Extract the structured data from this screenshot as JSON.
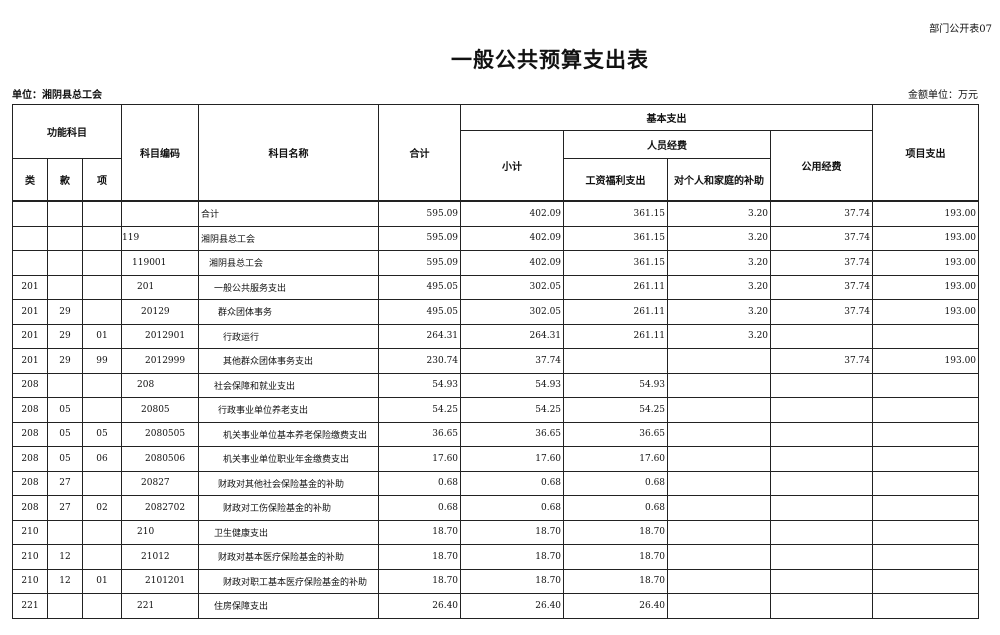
{
  "form_no": "部门公开表07",
  "title": "一般公共预算支出表",
  "unit": "单位：湘阴县总工会",
  "money_unit": "金额单位：万元",
  "headers": {
    "func_subject": "功能科目",
    "lei": "类",
    "kuan": "款",
    "xiang": "项",
    "code": "科目编码",
    "name": "科目名称",
    "total": "合计",
    "basic": "基本支出",
    "subtotal": "小计",
    "personnel": "人员经费",
    "wages": "工资福利支出",
    "subsidy": "对个人和家庭的补助",
    "public": "公用经费",
    "project": "项目支出"
  },
  "rows": [
    {
      "lei": "",
      "kuan": "",
      "xiang": "",
      "code": "",
      "name": "合计",
      "total": "595.09",
      "subtotal": "402.09",
      "wages": "361.15",
      "subsidy": "3.20",
      "public": "37.74",
      "project": "193.00"
    },
    {
      "lei": "",
      "kuan": "",
      "xiang": "",
      "code": "119",
      "name": "湘阴县总工会",
      "total": "595.09",
      "subtotal": "402.09",
      "wages": "361.15",
      "subsidy": "3.20",
      "public": "37.74",
      "project": "193.00"
    },
    {
      "lei": "",
      "kuan": "",
      "xiang": "",
      "code": "119001",
      "name": "湘阴县总工会",
      "total": "595.09",
      "subtotal": "402.09",
      "wages": "361.15",
      "subsidy": "3.20",
      "public": "37.74",
      "project": "193.00"
    },
    {
      "lei": "201",
      "kuan": "",
      "xiang": "",
      "code": "201",
      "name": "一般公共服务支出",
      "total": "495.05",
      "subtotal": "302.05",
      "wages": "261.11",
      "subsidy": "3.20",
      "public": "37.74",
      "project": "193.00"
    },
    {
      "lei": "201",
      "kuan": "29",
      "xiang": "",
      "code": "20129",
      "name": "群众团体事务",
      "total": "495.05",
      "subtotal": "302.05",
      "wages": "261.11",
      "subsidy": "3.20",
      "public": "37.74",
      "project": "193.00"
    },
    {
      "lei": "201",
      "kuan": "29",
      "xiang": "01",
      "code": "2012901",
      "name": "行政运行",
      "total": "264.31",
      "subtotal": "264.31",
      "wages": "261.11",
      "subsidy": "3.20",
      "public": "",
      "project": ""
    },
    {
      "lei": "201",
      "kuan": "29",
      "xiang": "99",
      "code": "2012999",
      "name": "其他群众团体事务支出",
      "total": "230.74",
      "subtotal": "37.74",
      "wages": "",
      "subsidy": "",
      "public": "37.74",
      "project": "193.00"
    },
    {
      "lei": "208",
      "kuan": "",
      "xiang": "",
      "code": "208",
      "name": "社会保障和就业支出",
      "total": "54.93",
      "subtotal": "54.93",
      "wages": "54.93",
      "subsidy": "",
      "public": "",
      "project": ""
    },
    {
      "lei": "208",
      "kuan": "05",
      "xiang": "",
      "code": "20805",
      "name": "行政事业单位养老支出",
      "total": "54.25",
      "subtotal": "54.25",
      "wages": "54.25",
      "subsidy": "",
      "public": "",
      "project": ""
    },
    {
      "lei": "208",
      "kuan": "05",
      "xiang": "05",
      "code": "2080505",
      "name": "机关事业单位基本养老保险缴费支出",
      "total": "36.65",
      "subtotal": "36.65",
      "wages": "36.65",
      "subsidy": "",
      "public": "",
      "project": ""
    },
    {
      "lei": "208",
      "kuan": "05",
      "xiang": "06",
      "code": "2080506",
      "name": "机关事业单位职业年金缴费支出",
      "total": "17.60",
      "subtotal": "17.60",
      "wages": "17.60",
      "subsidy": "",
      "public": "",
      "project": ""
    },
    {
      "lei": "208",
      "kuan": "27",
      "xiang": "",
      "code": "20827",
      "name": "财政对其他社会保险基金的补助",
      "total": "0.68",
      "subtotal": "0.68",
      "wages": "0.68",
      "subsidy": "",
      "public": "",
      "project": ""
    },
    {
      "lei": "208",
      "kuan": "27",
      "xiang": "02",
      "code": "2082702",
      "name": "财政对工伤保险基金的补助",
      "total": "0.68",
      "subtotal": "0.68",
      "wages": "0.68",
      "subsidy": "",
      "public": "",
      "project": ""
    },
    {
      "lei": "210",
      "kuan": "",
      "xiang": "",
      "code": "210",
      "name": "卫生健康支出",
      "total": "18.70",
      "subtotal": "18.70",
      "wages": "18.70",
      "subsidy": "",
      "public": "",
      "project": ""
    },
    {
      "lei": "210",
      "kuan": "12",
      "xiang": "",
      "code": "21012",
      "name": "财政对基本医疗保险基金的补助",
      "total": "18.70",
      "subtotal": "18.70",
      "wages": "18.70",
      "subsidy": "",
      "public": "",
      "project": ""
    },
    {
      "lei": "210",
      "kuan": "12",
      "xiang": "01",
      "code": "2101201",
      "name": "财政对职工基本医疗保险基金的补助",
      "total": "18.70",
      "subtotal": "18.70",
      "wages": "18.70",
      "subsidy": "",
      "public": "",
      "project": ""
    },
    {
      "lei": "221",
      "kuan": "",
      "xiang": "",
      "code": "221",
      "name": "住房保障支出",
      "total": "26.40",
      "subtotal": "26.40",
      "wages": "26.40",
      "subsidy": "",
      "public": "",
      "project": ""
    }
  ]
}
